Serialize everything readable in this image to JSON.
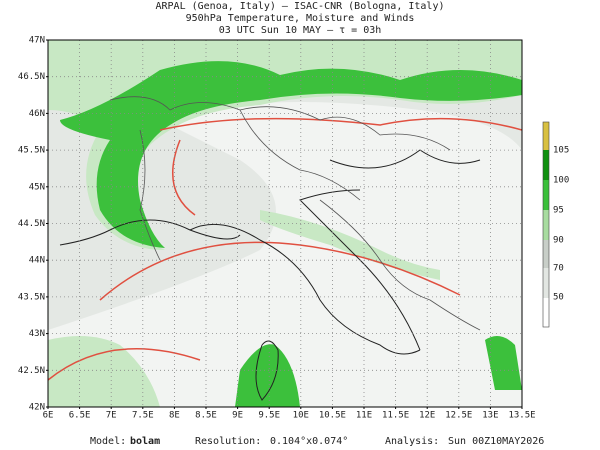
{
  "header": {
    "lines": [
      "ARPAL (Genoa, Italy)  —  ISAC-CNR (Bologna, Italy)",
      "950hPa Temperature, Moisture and Winds",
      "03 UTC Sun 10 MAY  —  τ = 03h"
    ]
  },
  "map": {
    "lat_labels": [
      "47N",
      "46.5N",
      "46N",
      "45.5N",
      "45N",
      "44.5N",
      "44N",
      "43.5N",
      "43N",
      "42.5N",
      "42N"
    ],
    "lon_labels": [
      "6E",
      "6.5E",
      "7E",
      "7.5E",
      "8E",
      "8.5E",
      "9E",
      "9.5E",
      "10E",
      "10.5E",
      "11E",
      "11.5E",
      "12E",
      "12.5E",
      "13E",
      "13.5E"
    ]
  },
  "colorbar": {
    "labels": [
      "105",
      "100",
      "95",
      "90",
      "70",
      "50"
    ]
  },
  "footer": {
    "model": {
      "label": "Model:",
      "value": "bolam"
    },
    "resolution": {
      "label": "Resolution:",
      "value": "0.104°x0.074°"
    },
    "analysis": {
      "label": "Analysis:",
      "value": "Sun 00Z10MAY2026"
    }
  }
}
